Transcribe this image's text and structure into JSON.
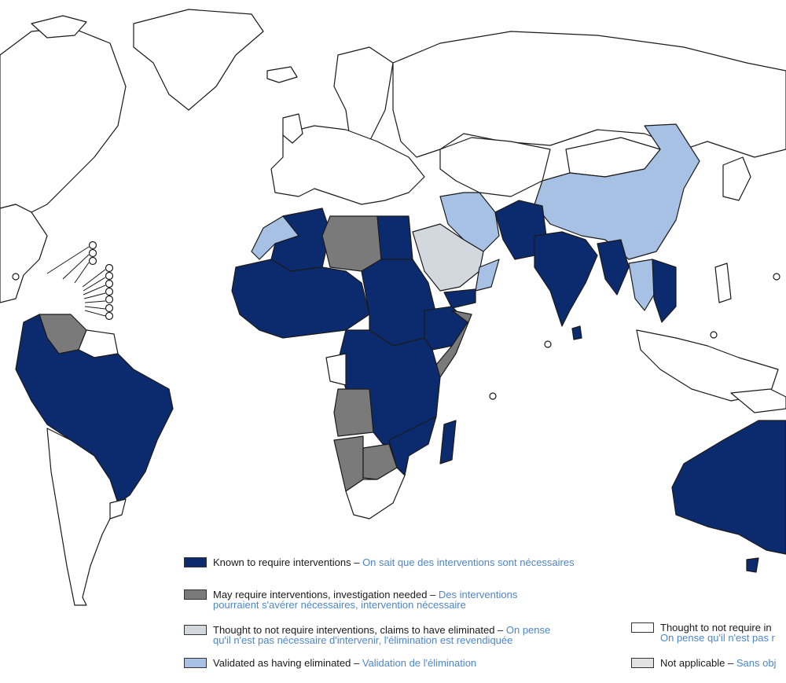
{
  "colors": {
    "known": "#0c2b6e",
    "may": "#7a7a7a",
    "thought_eliminated": "#d3d7de",
    "validated": "#a6c1e3",
    "thought_not": "#ffffff",
    "not_applicable": "#e2e2e2",
    "fr_text": "#4f86c6"
  },
  "legend": [
    {
      "key": "known",
      "en": "Known to require interventions – ",
      "fr": "On sait que des interventions sont nécessaires",
      "en2": "",
      "fr2": ""
    },
    {
      "key": "may",
      "en": "May require interventions, investigation needed – ",
      "fr": "Des interventions",
      "en2": "",
      "fr2": "pourraient s'avérer nécessaires, intervention nécessaire"
    },
    {
      "key": "thought_eliminated",
      "en": "Thought to not require interventions, claims to have eliminated – ",
      "fr": "On pense",
      "en2": "",
      "fr2": "qu'il n'est pas nécessaire d'intervenir, l'élimination est revendiquée"
    },
    {
      "key": "validated",
      "en": "Validated as having eliminated – ",
      "fr": "Validation de l'élimination",
      "en2": "",
      "fr2": ""
    },
    {
      "key": "thought_not",
      "en": "Thought to not require in",
      "fr": "",
      "en2": "",
      "fr2": "On pense qu'il n'est pas r"
    },
    {
      "key": "not_applicable",
      "en": "Not applicable – ",
      "fr": "Sans obj",
      "en2": "",
      "fr2": ""
    }
  ]
}
